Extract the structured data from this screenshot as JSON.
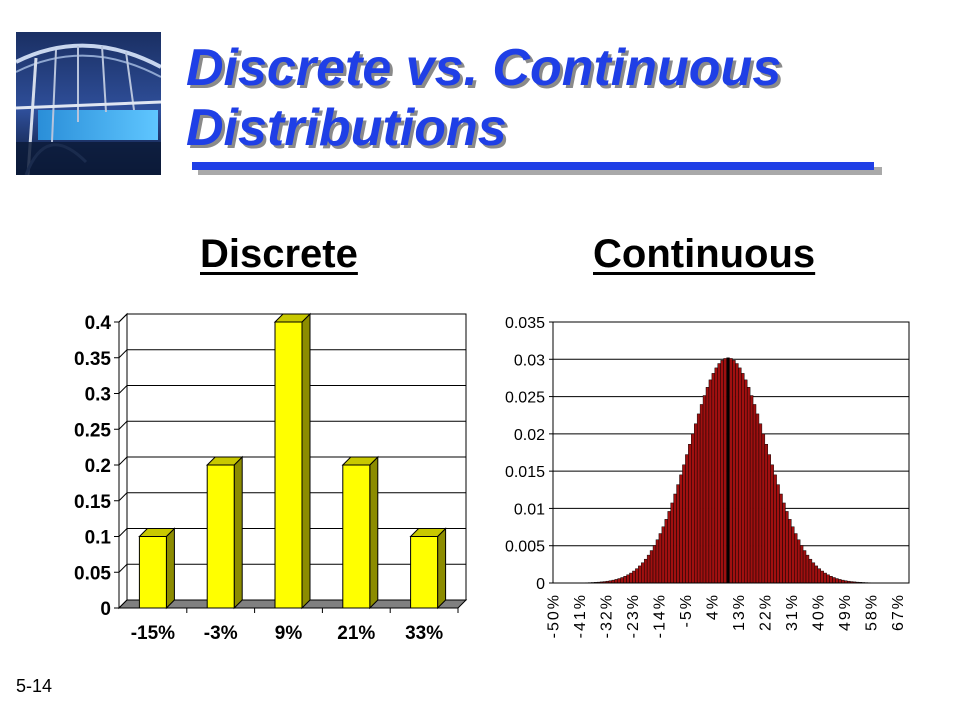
{
  "slide": {
    "title_line1": "Discrete vs. Continuous",
    "title_line2": "Distributions",
    "slide_number": "5-14"
  },
  "colors": {
    "title": "#1f3fe6",
    "discrete_bar": "#ffff00",
    "continuous_bar": "#a01010"
  },
  "chart_data": [
    {
      "type": "bar",
      "title": "Discrete",
      "categories": [
        "-15%",
        "-3%",
        "9%",
        "21%",
        "33%"
      ],
      "values": [
        0.1,
        0.2,
        0.4,
        0.2,
        0.1
      ],
      "ylim": [
        0,
        0.4
      ],
      "yticks": [
        "0",
        "0.05",
        "0.1",
        "0.15",
        "0.2",
        "0.25",
        "0.3",
        "0.35",
        "0.4"
      ],
      "style": "3d",
      "grid": true,
      "legend": "none"
    },
    {
      "type": "bar",
      "title": "Continuous",
      "distribution": "normal",
      "mean_percent": 9,
      "peak_density": 0.0302,
      "x_range_percent": [
        -50,
        70
      ],
      "x_step_percent": 1,
      "xticks": [
        "-50%",
        "-41%",
        "-32%",
        "-23%",
        "-14%",
        "-5%",
        "4%",
        "13%",
        "22%",
        "31%",
        "40%",
        "49%",
        "58%",
        "67%"
      ],
      "ylim": [
        0,
        0.035
      ],
      "yticks": [
        "0",
        "0.005",
        "0.01",
        "0.015",
        "0.02",
        "0.025",
        "0.03",
        "0.035"
      ],
      "grid": true,
      "legend": "none"
    }
  ]
}
